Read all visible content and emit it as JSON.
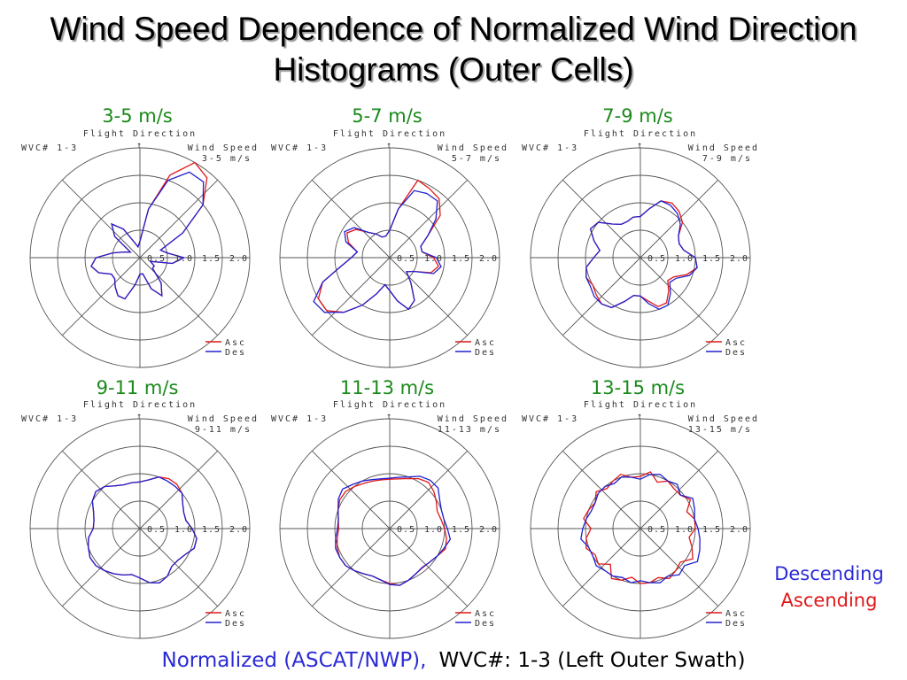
{
  "slide": {
    "title_line1": "Wind Speed Dependence of Normalized Wind Direction",
    "title_line2": "Histograms (Outer Cells)",
    "footer_normalized": "Normalized (ASCAT/NWP),",
    "footer_wvc": "WVC#: 1-3 (Left Outer Swath)",
    "legend_descending": "Descending",
    "legend_ascending": "Ascending"
  },
  "colors": {
    "asc": "#e01818",
    "des": "#2020d0",
    "heading": "#1a8a1a",
    "grid": "#555555"
  },
  "chart_data": [
    {
      "type": "line",
      "heading": "3-5 m/s",
      "flight": "Flight Direction",
      "wvc": "WVC# 1-3",
      "ws_label": "Wind Speed",
      "ws_value": "3-5 m/s",
      "ticks": [
        "0.5",
        "1.0",
        "1.5",
        "2.0"
      ],
      "rmax": 2.0,
      "series_names": [
        "Asc",
        "Des"
      ],
      "series": [
        {
          "name": "Asc",
          "r": [
            0.3,
            0.9,
            1.6,
            2.0,
            1.9,
            1.5,
            0.9,
            0.4,
            0.5,
            0.8,
            0.6,
            0.2,
            0.3,
            0.3,
            0.6,
            0.8,
            0.6,
            0.3,
            0.3,
            0.5,
            0.8,
            0.8,
            0.7,
            0.6,
            0.6,
            0.8,
            0.9,
            0.8,
            0.5,
            0.3,
            0.2,
            0.6,
            0.8,
            0.6,
            0.3,
            0.2
          ]
        },
        {
          "name": "Des",
          "r": [
            0.3,
            0.9,
            1.5,
            1.8,
            1.8,
            1.5,
            0.9,
            0.4,
            0.5,
            0.8,
            0.6,
            0.2,
            0.3,
            0.3,
            0.6,
            0.8,
            0.6,
            0.3,
            0.3,
            0.5,
            0.8,
            0.8,
            0.7,
            0.6,
            0.6,
            0.8,
            0.9,
            0.8,
            0.5,
            0.3,
            0.2,
            0.6,
            0.8,
            0.6,
            0.3,
            0.2
          ]
        }
      ]
    },
    {
      "type": "line",
      "heading": "5-7 m/s",
      "flight": "Flight Direction",
      "wvc": "WVC# 1-3",
      "ws_label": "Wind Speed",
      "ws_value": "5-7 m/s",
      "ticks": [
        "0.5",
        "1.0",
        "1.5",
        "2.0"
      ],
      "rmax": 2.0,
      "series_names": [
        "Asc",
        "Des"
      ],
      "series": [
        {
          "name": "Asc",
          "r": [
            0.5,
            0.9,
            1.5,
            1.45,
            1.4,
            1.2,
            0.8,
            0.6,
            0.6,
            0.8,
            0.9,
            0.8,
            0.5,
            0.4,
            0.6,
            0.9,
            1.0,
            0.8,
            0.6,
            0.5,
            0.7,
            1.0,
            1.3,
            1.5,
            1.5,
            1.3,
            0.9,
            0.7,
            0.6,
            0.8,
            0.9,
            0.8,
            0.6,
            0.5,
            0.4,
            0.4
          ]
        },
        {
          "name": "Des",
          "r": [
            0.5,
            0.9,
            1.3,
            1.35,
            1.35,
            1.1,
            0.8,
            0.6,
            0.6,
            0.85,
            0.95,
            0.85,
            0.5,
            0.4,
            0.6,
            0.9,
            1.0,
            0.8,
            0.6,
            0.5,
            0.7,
            1.0,
            1.3,
            1.55,
            1.6,
            1.3,
            0.9,
            0.7,
            0.6,
            0.85,
            0.95,
            0.85,
            0.6,
            0.5,
            0.4,
            0.4
          ]
        }
      ]
    },
    {
      "type": "line",
      "heading": "7-9 m/s",
      "flight": "Flight Direction",
      "wvc": "WVC# 1-3",
      "ws_label": "Wind Speed",
      "ws_value": "7-9 m/s",
      "ticks": [
        "0.5",
        "1.0",
        "1.5",
        "2.0"
      ],
      "rmax": 2.0,
      "series_names": [
        "Asc",
        "Des"
      ],
      "series": [
        {
          "name": "Asc",
          "r": [
            0.75,
            0.9,
            1.1,
            1.15,
            1.1,
            1.0,
            0.8,
            0.75,
            0.8,
            1.0,
            1.05,
            0.9,
            0.7,
            0.65,
            0.8,
            0.95,
            0.95,
            0.8,
            0.7,
            0.7,
            0.85,
            1.05,
            1.1,
            1.05,
            1.0,
            1.05,
            1.0,
            0.85,
            0.75,
            0.9,
            1.05,
            1.0,
            0.8,
            0.7,
            0.7,
            0.75
          ]
        },
        {
          "name": "Des",
          "r": [
            0.75,
            0.9,
            1.1,
            1.1,
            1.05,
            0.95,
            0.8,
            0.75,
            0.8,
            1.0,
            1.05,
            0.95,
            0.75,
            0.7,
            0.85,
            1.0,
            1.0,
            0.85,
            0.7,
            0.7,
            0.85,
            1.05,
            1.1,
            1.1,
            1.05,
            1.05,
            1.0,
            0.85,
            0.75,
            0.9,
            1.05,
            1.0,
            0.8,
            0.7,
            0.7,
            0.75
          ]
        }
      ]
    },
    {
      "type": "line",
      "heading": "9-11 m/s",
      "flight": "Flight Direction",
      "wvc": "WVC# 1-3",
      "ws_label": "Wind Speed",
      "ws_value": "9-11 m/s",
      "ticks": [
        "0.5",
        "1.0",
        "1.5",
        "2.0"
      ],
      "rmax": 2.0,
      "series_names": [
        "Asc",
        "Des"
      ],
      "series": [
        {
          "name": "Asc",
          "r": [
            0.85,
            0.9,
            1.0,
            1.05,
            1.05,
            1.0,
            0.9,
            0.85,
            0.85,
            0.95,
            1.05,
            1.05,
            0.95,
            0.9,
            0.9,
            1.0,
            1.05,
            1.0,
            0.9,
            0.85,
            0.9,
            0.95,
            1.0,
            1.05,
            1.05,
            1.0,
            0.95,
            0.85,
            0.85,
            0.9,
            1.0,
            1.05,
            1.0,
            0.9,
            0.85,
            0.85
          ]
        },
        {
          "name": "Des",
          "r": [
            0.85,
            0.9,
            1.0,
            1.0,
            1.0,
            1.0,
            0.9,
            0.85,
            0.85,
            0.95,
            1.05,
            1.05,
            0.95,
            0.9,
            0.9,
            1.0,
            1.05,
            1.0,
            0.9,
            0.85,
            0.9,
            0.95,
            1.0,
            1.05,
            1.05,
            1.0,
            0.95,
            0.85,
            0.85,
            0.9,
            1.0,
            1.05,
            1.0,
            0.9,
            0.85,
            0.85
          ]
        }
      ]
    },
    {
      "type": "line",
      "heading": "11-13 m/s",
      "flight": "Flight Direction",
      "wvc": "WVC# 1-3",
      "ws_label": "Wind Speed",
      "ws_value": "11-13 m/s",
      "ticks": [
        "0.5",
        "1.0",
        "1.5",
        "2.0"
      ],
      "rmax": 2.0,
      "series_names": [
        "Asc",
        "Des"
      ],
      "series": [
        {
          "name": "Asc",
          "r": [
            0.9,
            0.92,
            0.97,
            1.05,
            1.1,
            1.05,
            0.98,
            0.92,
            0.95,
            1.0,
            1.05,
            1.08,
            1.0,
            0.95,
            0.93,
            0.95,
            1.0,
            1.05,
            1.0,
            0.95,
            0.92,
            0.95,
            1.0,
            1.05,
            1.05,
            1.02,
            0.97,
            0.93,
            0.95,
            1.0,
            1.05,
            1.05,
            1.0,
            0.95,
            0.92,
            0.9
          ]
        },
        {
          "name": "Des",
          "r": [
            0.92,
            0.95,
            1.0,
            1.1,
            1.15,
            1.15,
            1.05,
            1.0,
            1.0,
            1.05,
            1.12,
            1.05,
            1.0,
            0.95,
            0.92,
            0.95,
            1.0,
            1.05,
            1.02,
            0.95,
            0.92,
            0.95,
            1.0,
            1.05,
            1.05,
            1.05,
            1.0,
            0.95,
            0.95,
            1.0,
            1.08,
            1.12,
            1.05,
            1.0,
            0.95,
            0.92
          ]
        }
      ]
    },
    {
      "type": "line",
      "heading": "13-15 m/s",
      "flight": "Flight Direction",
      "wvc": "WVC# 1-3",
      "ws_label": "Wind Speed",
      "ws_value": "13-15 m/s",
      "ticks": [
        "0.5",
        "1.0",
        "1.5",
        "2.0"
      ],
      "rmax": 2.0,
      "series_names": [
        "Asc",
        "Des"
      ],
      "series": [
        {
          "name": "Asc",
          "r": [
            0.95,
            1.05,
            0.9,
            1.0,
            0.95,
            0.95,
            1.05,
            0.9,
            1.0,
            1.0,
            0.9,
            1.0,
            1.1,
            0.95,
            1.0,
            1.05,
            0.95,
            1.0,
            1.0,
            0.9,
            1.0,
            1.05,
            0.85,
            1.0,
            0.95,
            1.05,
            1.0,
            0.9,
            1.05,
            1.0,
            0.95,
            1.05,
            0.95,
            1.0,
            1.05,
            0.95
          ]
        },
        {
          "name": "Des",
          "r": [
            0.9,
            1.0,
            1.05,
            1.0,
            1.05,
            0.95,
            1.1,
            1.05,
            1.0,
            1.05,
            1.1,
            1.15,
            1.2,
            1.05,
            1.1,
            1.0,
            1.05,
            1.0,
            0.95,
            1.0,
            0.95,
            1.0,
            1.0,
            1.05,
            1.0,
            1.0,
            1.1,
            1.05,
            1.0,
            0.95,
            0.95,
            1.0,
            1.0,
            0.95,
            1.0,
            0.95
          ]
        }
      ]
    }
  ]
}
